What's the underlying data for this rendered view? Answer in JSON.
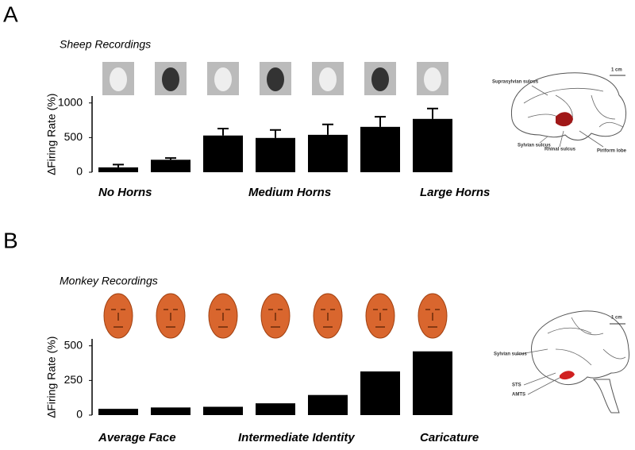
{
  "chart_data": [
    {
      "type": "bar",
      "panel_label": "A",
      "subtitle": "Sheep Recordings",
      "y_label": "∆Firing Rate (%)",
      "categories": [
        "No Horns",
        null,
        null,
        "Medium Horns",
        null,
        null,
        "Large Horns"
      ],
      "values": [
        70,
        180,
        530,
        495,
        540,
        655,
        770
      ],
      "errors": [
        40,
        25,
        100,
        115,
        150,
        145,
        150
      ],
      "color": "#000000",
      "ylim": [
        0,
        1100
      ],
      "yticks": [
        0,
        500,
        1000
      ],
      "annotations": [
        "1 cm",
        "Suprasylvian sulcus",
        "Sylvian sulcus",
        "Rhinal sulcus",
        "Piriform lobe"
      ]
    },
    {
      "type": "bar",
      "panel_label": "B",
      "subtitle": "Monkey Recordings",
      "y_label": "∆Firing Rate (%)",
      "categories": [
        "Average Face",
        null,
        null,
        "Intermediate Identity",
        null,
        null,
        "Caricature"
      ],
      "values": [
        45,
        55,
        60,
        85,
        145,
        315,
        460
      ],
      "color": "#000000",
      "ylim": [
        0,
        550
      ],
      "yticks": [
        0,
        250,
        500
      ],
      "annotations": [
        "1 cm",
        "Sylvian sulcus",
        "STS",
        "AMTS"
      ]
    }
  ]
}
